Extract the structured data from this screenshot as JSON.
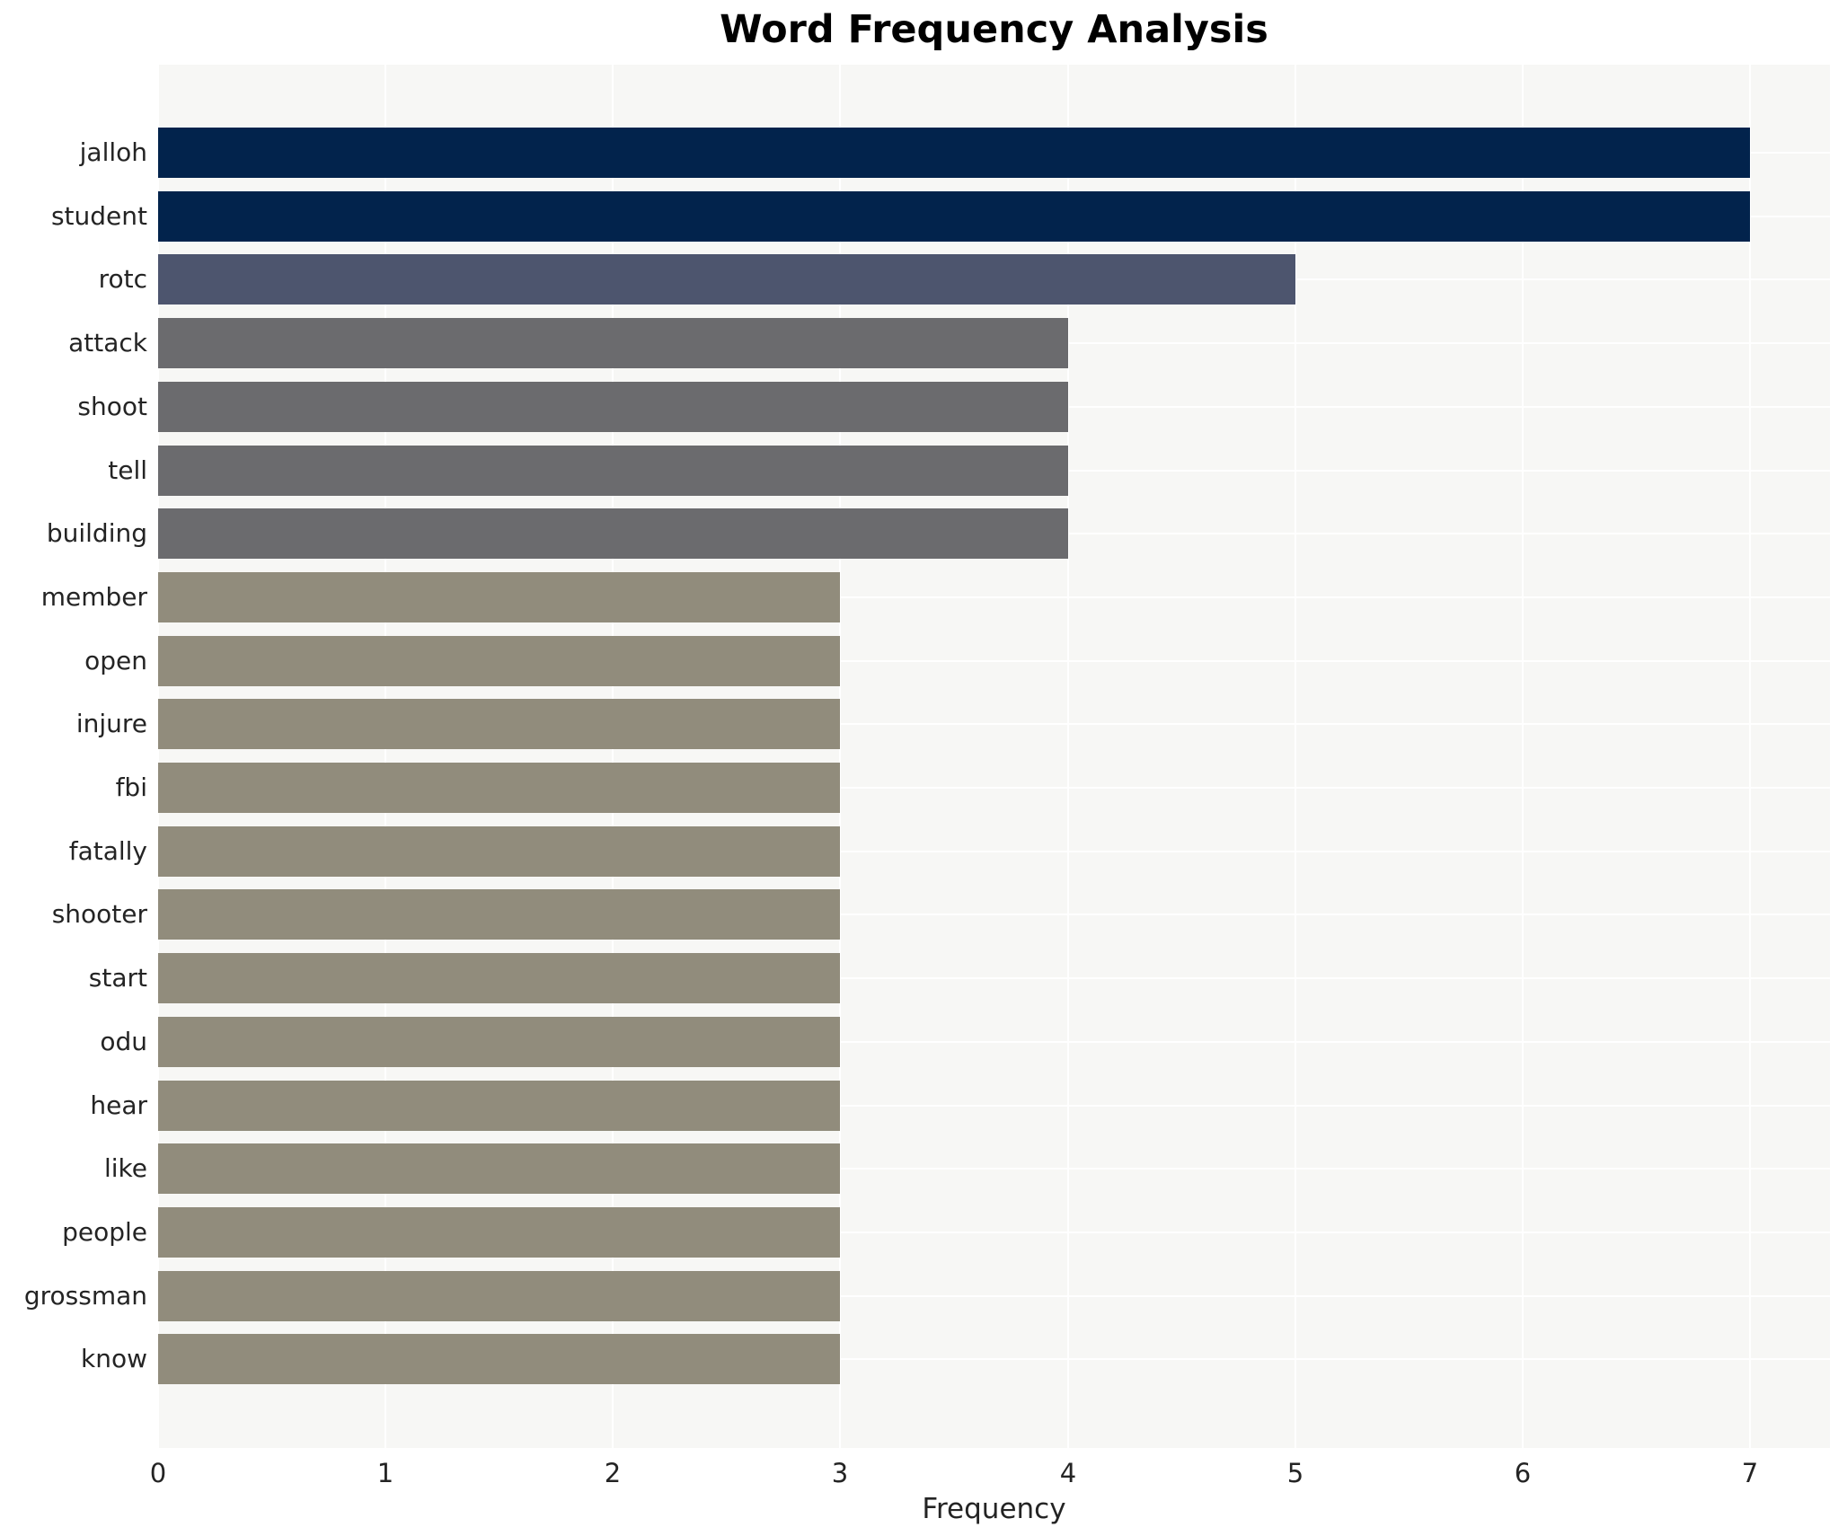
{
  "title": "Word Frequency Analysis",
  "chart_data": {
    "type": "bar",
    "orientation": "horizontal",
    "title": "Word Frequency Analysis",
    "xlabel": "Frequency",
    "ylabel": "",
    "categories": [
      "jalloh",
      "student",
      "rotc",
      "attack",
      "shoot",
      "tell",
      "building",
      "member",
      "open",
      "injure",
      "fbi",
      "fatally",
      "shooter",
      "start",
      "odu",
      "hear",
      "like",
      "people",
      "grossman",
      "know"
    ],
    "values": [
      7,
      7,
      5,
      4,
      4,
      4,
      4,
      3,
      3,
      3,
      3,
      3,
      3,
      3,
      3,
      3,
      3,
      3,
      3,
      3
    ],
    "bar_colors": [
      "#02234c",
      "#02234c",
      "#4d556e",
      "#6b6b6e",
      "#6b6b6e",
      "#6b6b6e",
      "#6b6b6e",
      "#918c7c",
      "#918c7c",
      "#918c7c",
      "#918c7c",
      "#918c7c",
      "#918c7c",
      "#918c7c",
      "#918c7c",
      "#918c7c",
      "#918c7c",
      "#918c7c",
      "#918c7c",
      "#918c7c"
    ],
    "palette_by_value": {
      "7": "#02234c",
      "5": "#4d556e",
      "4": "#6b6b6e",
      "3": "#918c7c"
    },
    "xticks": [
      0,
      1,
      2,
      3,
      4,
      5,
      6,
      7
    ],
    "xlim": [
      0,
      7.35
    ],
    "grid": true,
    "grid_color": "#ffffff",
    "plot_background": "#f7f7f5",
    "figure_background": "#ffffff",
    "legend": "none"
  }
}
